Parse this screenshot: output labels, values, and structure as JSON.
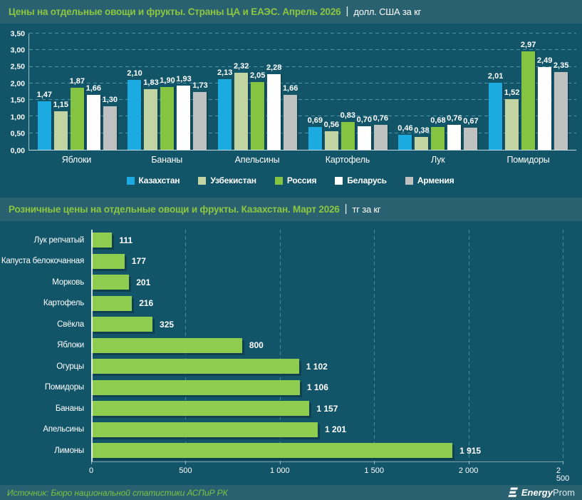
{
  "chart1_header": {
    "title": "Цены на отдельные овощи и фрукты. Страны ЦА и ЕАЭС. Апрель 2026",
    "separator": "|",
    "unit": "долл. США за кг"
  },
  "chart2_header": {
    "title": "Розничные цены на отдельные овощи и фрукты. Казахстан. Март 2026",
    "separator": "|",
    "unit": "тг за кг"
  },
  "chart_data": [
    {
      "type": "bar",
      "title": "Цены на отдельные овощи и фрукты. Страны ЦА и ЕАЭС. Апрель 2026",
      "unit": "долл. США за кг",
      "categories": [
        "Яблоки",
        "Бананы",
        "Апельсины",
        "Картофель",
        "Лук",
        "Помидоры"
      ],
      "series": [
        {
          "name": "Казахстан",
          "color": "#1babe0",
          "values": [
            1.47,
            2.1,
            2.13,
            0.69,
            0.46,
            2.01
          ]
        },
        {
          "name": "Узбекистан",
          "color": "#c3d4a3",
          "values": [
            1.15,
            1.83,
            2.32,
            0.56,
            0.38,
            1.52
          ]
        },
        {
          "name": "Россия",
          "color": "#84c441",
          "values": [
            1.87,
            1.9,
            2.05,
            0.83,
            0.68,
            2.97
          ]
        },
        {
          "name": "Беларусь",
          "color": "#ffffff",
          "values": [
            1.66,
            1.93,
            2.28,
            0.7,
            0.76,
            2.49
          ]
        },
        {
          "name": "Армения",
          "color": "#bfc0c0",
          "values": [
            1.3,
            1.73,
            1.66,
            0.76,
            0.67,
            2.35
          ]
        }
      ],
      "ylim": [
        0,
        3.5
      ],
      "ytick_labels": [
        "0,00",
        "0,50",
        "1,00",
        "1,50",
        "2,00",
        "2,50",
        "3,00",
        "3,50"
      ],
      "grid": true,
      "legend_position": "bottom",
      "value_label_format": "comma-decimal-2"
    },
    {
      "type": "bar-horizontal",
      "title": "Розничные цены на отдельные овощи и фрукты. Казахстан. Март 2026",
      "unit": "тг за кг",
      "categories": [
        "Лук репчатый",
        "Капуста белокочанная",
        "Морковь",
        "Картофель",
        "Свёкла",
        "Яблоки",
        "Огурцы",
        "Помидоры",
        "Бананы",
        "Апельсины",
        "Лимоны"
      ],
      "values": [
        111,
        177,
        201,
        216,
        325,
        800,
        1102,
        1106,
        1157,
        1201,
        1915
      ],
      "bar_color": "#8ecd50",
      "xlim": [
        0,
        2500
      ],
      "xticks": [
        0,
        500,
        1000,
        1500,
        2000,
        2500
      ],
      "grid": true,
      "value_label_format": "space-thousands"
    }
  ],
  "footer": {
    "source": "Источник: Бюро национальной статистики АСПиР РК",
    "logo_bold": "Energy",
    "logo_light": "Prom"
  },
  "colors": {
    "page_bg": "#135568",
    "band_bg": "#2a6170",
    "title_green": "#8dc63f",
    "text_white": "#ffffff",
    "gridline": "#63b0c6",
    "source_green": "#7ec142"
  }
}
